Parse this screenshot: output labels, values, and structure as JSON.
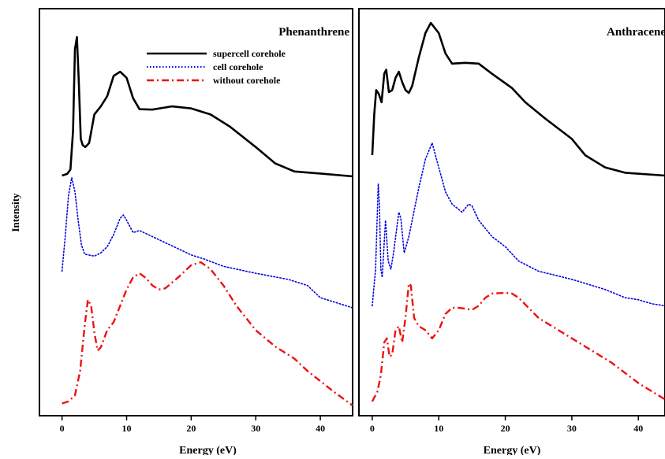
{
  "ylabel": "Intensity",
  "chart_data": [
    {
      "type": "line",
      "title": "Phenanthrene",
      "xlabel": "Energy (eV)",
      "ylabel": "Intensity",
      "xlim": [
        -3.5,
        45
      ],
      "ylim": [
        0,
        100
      ],
      "xticks": [
        "0",
        "10",
        "20",
        "30",
        "40"
      ],
      "grid": false,
      "legend_position": "top-center",
      "series": [
        {
          "name": "supercell corehole",
          "color": "#000000",
          "style": "solid",
          "points": [
            [
              0,
              59
            ],
            [
              0.8,
              59.4
            ],
            [
              1.3,
              60.5
            ],
            [
              1.7,
              70
            ],
            [
              2,
              90
            ],
            [
              2.3,
              93
            ],
            [
              2.6,
              82
            ],
            [
              2.9,
              68
            ],
            [
              3.2,
              66.5
            ],
            [
              3.6,
              66
            ],
            [
              4.2,
              67
            ],
            [
              5,
              74
            ],
            [
              6,
              76
            ],
            [
              7,
              78.5
            ],
            [
              8,
              83.5
            ],
            [
              9,
              84.5
            ],
            [
              10,
              83
            ],
            [
              11,
              78
            ],
            [
              12,
              75.3
            ],
            [
              14,
              75.2
            ],
            [
              17,
              76
            ],
            [
              20,
              75.5
            ],
            [
              23,
              74
            ],
            [
              26,
              71
            ],
            [
              30,
              66
            ],
            [
              33,
              62
            ],
            [
              36,
              60
            ],
            [
              40,
              59.5
            ],
            [
              45,
              58.8
            ]
          ]
        },
        {
          "name": "cell corehole",
          "color": "#0000dd",
          "style": "dotted",
          "points": [
            [
              0,
              35.5
            ],
            [
              0.5,
              44
            ],
            [
              1,
              54
            ],
            [
              1.5,
              58.5
            ],
            [
              2,
              55
            ],
            [
              2.5,
              48
            ],
            [
              3,
              42
            ],
            [
              3.5,
              39.7
            ],
            [
              5,
              39.2
            ],
            [
              6,
              40
            ],
            [
              7,
              41.5
            ],
            [
              8,
              44.5
            ],
            [
              9,
              48.5
            ],
            [
              9.5,
              49.3
            ],
            [
              10,
              48
            ],
            [
              11,
              45
            ],
            [
              12,
              45.5
            ],
            [
              14,
              44
            ],
            [
              16,
              42.5
            ],
            [
              18,
              41
            ],
            [
              20,
              39.5
            ],
            [
              22,
              38.5
            ],
            [
              25,
              36.7
            ],
            [
              30,
              35
            ],
            [
              35,
              33.5
            ],
            [
              38,
              32
            ],
            [
              40,
              29
            ],
            [
              42,
              28
            ],
            [
              45,
              26.5
            ]
          ]
        },
        {
          "name": "without corehole",
          "color": "#ee1111",
          "style": "dashdot",
          "points": [
            [
              0,
              3
            ],
            [
              1,
              3.5
            ],
            [
              2,
              5
            ],
            [
              2.8,
              11
            ],
            [
              3.5,
              22
            ],
            [
              4,
              28.5
            ],
            [
              4.5,
              27
            ],
            [
              5,
              20.5
            ],
            [
              5.5,
              16
            ],
            [
              6,
              16.8
            ],
            [
              7,
              21
            ],
            [
              8,
              23
            ],
            [
              9,
              27
            ],
            [
              10,
              31
            ],
            [
              11,
              34
            ],
            [
              12,
              35
            ],
            [
              13,
              33.8
            ],
            [
              14,
              32
            ],
            [
              15,
              31
            ],
            [
              16,
              31.3
            ],
            [
              18,
              34
            ],
            [
              20,
              37
            ],
            [
              21.5,
              37.7
            ],
            [
              23,
              36
            ],
            [
              25,
              32
            ],
            [
              27,
              27
            ],
            [
              30,
              21
            ],
            [
              33,
              17
            ],
            [
              36,
              14
            ],
            [
              38,
              11
            ],
            [
              40,
              8.5
            ],
            [
              42,
              6
            ],
            [
              45,
              2.5
            ]
          ]
        }
      ]
    },
    {
      "type": "line",
      "title": "Anthracene",
      "xlabel": "Energy (eV)",
      "xlim": [
        -2,
        44
      ],
      "ylim": [
        0,
        100
      ],
      "xticks": [
        "0",
        "10",
        "20",
        "30",
        "40"
      ],
      "grid": false,
      "series": [
        {
          "color": "#000000",
          "style": "solid",
          "points": [
            [
              0,
              64
            ],
            [
              0.3,
              74
            ],
            [
              0.6,
              80
            ],
            [
              1,
              79
            ],
            [
              1.4,
              77
            ],
            [
              1.8,
              84
            ],
            [
              2.1,
              85
            ],
            [
              2.5,
              79.5
            ],
            [
              3,
              80
            ],
            [
              3.5,
              83
            ],
            [
              4,
              84.5
            ],
            [
              4.5,
              82
            ],
            [
              5,
              80
            ],
            [
              5.5,
              79.3
            ],
            [
              6,
              81
            ],
            [
              7,
              88
            ],
            [
              8,
              94
            ],
            [
              8.8,
              96.5
            ],
            [
              10,
              94
            ],
            [
              11,
              89
            ],
            [
              12,
              86.5
            ],
            [
              14,
              86.7
            ],
            [
              16,
              86.5
            ],
            [
              18,
              84
            ],
            [
              21,
              80.5
            ],
            [
              23,
              77
            ],
            [
              26,
              73
            ],
            [
              30,
              68
            ],
            [
              32,
              64
            ],
            [
              35,
              61
            ],
            [
              38,
              59.7
            ],
            [
              44,
              59
            ]
          ]
        },
        {
          "color": "#0000dd",
          "style": "dotted",
          "points": [
            [
              0,
              27
            ],
            [
              0.5,
              36
            ],
            [
              0.9,
              57
            ],
            [
              1.1,
              51
            ],
            [
              1.3,
              36
            ],
            [
              1.5,
              34
            ],
            [
              2,
              48
            ],
            [
              2.4,
              38
            ],
            [
              2.8,
              36
            ],
            [
              3.2,
              40
            ],
            [
              3.6,
              45
            ],
            [
              4,
              50
            ],
            [
              4.3,
              48.5
            ],
            [
              4.8,
              40
            ],
            [
              5.5,
              44
            ],
            [
              7,
              56
            ],
            [
              8,
              63
            ],
            [
              9,
              67
            ],
            [
              10,
              61
            ],
            [
              11,
              55
            ],
            [
              12,
              52
            ],
            [
              13.5,
              50
            ],
            [
              14.5,
              52
            ],
            [
              15,
              51.5
            ],
            [
              16,
              48
            ],
            [
              18,
              44
            ],
            [
              20,
              41.5
            ],
            [
              22,
              38
            ],
            [
              25,
              35.5
            ],
            [
              30,
              33.5
            ],
            [
              35,
              31
            ],
            [
              38,
              29
            ],
            [
              40,
              28.5
            ],
            [
              42,
              27.5
            ],
            [
              44,
              27
            ]
          ]
        },
        {
          "color": "#ee1111",
          "style": "dashdot",
          "points": [
            [
              0,
              3.5
            ],
            [
              0.8,
              6
            ],
            [
              1.3,
              10
            ],
            [
              1.8,
              18
            ],
            [
              2.2,
              19
            ],
            [
              2.6,
              14.5
            ],
            [
              3,
              15
            ],
            [
              3.5,
              21
            ],
            [
              4,
              22
            ],
            [
              4.5,
              18
            ],
            [
              5,
              24
            ],
            [
              5.5,
              32.5
            ],
            [
              5.8,
              32
            ],
            [
              6.3,
              24
            ],
            [
              7,
              22
            ],
            [
              8,
              21
            ],
            [
              9,
              19
            ],
            [
              10,
              21
            ],
            [
              11,
              25
            ],
            [
              12,
              26.5
            ],
            [
              13,
              26.5
            ],
            [
              14,
              26.3
            ],
            [
              15,
              26
            ],
            [
              16,
              27
            ],
            [
              17,
              29
            ],
            [
              18,
              30
            ],
            [
              20,
              30.2
            ],
            [
              21,
              30
            ],
            [
              22,
              29
            ],
            [
              25,
              24
            ],
            [
              28,
              21
            ],
            [
              32,
              17
            ],
            [
              36,
              13
            ],
            [
              40,
              8
            ],
            [
              42,
              6
            ],
            [
              44,
              4
            ]
          ]
        }
      ]
    }
  ]
}
